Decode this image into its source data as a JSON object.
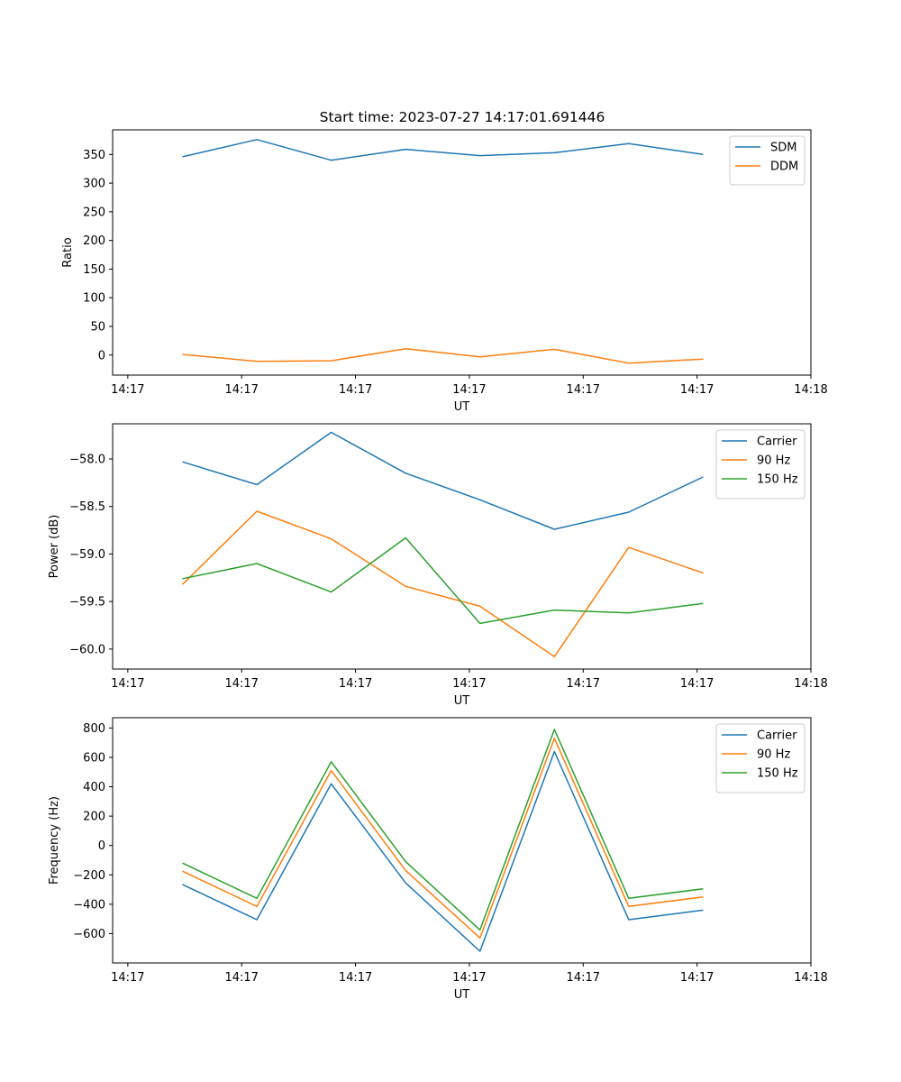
{
  "figure_title": "Start time: 2023-07-27 14:17:01.691446",
  "chart_data": [
    {
      "type": "line",
      "title": "Start time: 2023-07-27 14:17:01.691446",
      "xlabel": "UT",
      "ylabel": "Ratio",
      "xlim": [
        -0.1,
        4.5
      ],
      "ylim": [
        -35,
        393
      ],
      "x_ticks": [
        0,
        0.75,
        1.5,
        2.25,
        3,
        3.75,
        4.5
      ],
      "x_tick_labels": [
        "14:17",
        "14:17",
        "14:17",
        "14:17",
        "14:17",
        "14:17",
        "14:18"
      ],
      "y_ticks": [
        0,
        50,
        100,
        150,
        200,
        250,
        300,
        350
      ],
      "y_tick_labels": [
        "0",
        "50",
        "100",
        "150",
        "200",
        "250",
        "300",
        "350"
      ],
      "legend_position": "top-right",
      "x": [
        0.36,
        0.85,
        1.34,
        1.83,
        2.32,
        2.81,
        3.3,
        3.79
      ],
      "series": [
        {
          "name": "SDM",
          "color": "#1f77b4",
          "values": [
            346,
            376,
            340,
            359,
            348,
            353,
            369,
            350
          ]
        },
        {
          "name": "DDM",
          "color": "#ff7f0e",
          "values": [
            1,
            -11,
            -10,
            11,
            -3,
            10,
            -14,
            -7
          ]
        }
      ]
    },
    {
      "type": "line",
      "title": "",
      "xlabel": "UT",
      "ylabel": "Power (dB)",
      "xlim": [
        -0.1,
        4.5
      ],
      "ylim": [
        -60.21,
        -57.63
      ],
      "x_ticks": [
        0,
        0.75,
        1.5,
        2.25,
        3,
        3.75,
        4.5
      ],
      "x_tick_labels": [
        "14:17",
        "14:17",
        "14:17",
        "14:17",
        "14:17",
        "14:17",
        "14:18"
      ],
      "y_ticks": [
        -60.0,
        -59.5,
        -59.0,
        -58.5,
        -58.0
      ],
      "y_tick_labels": [
        "−60.0",
        "−59.5",
        "−59.0",
        "−58.5",
        "−58.0"
      ],
      "legend_position": "top-right",
      "x": [
        0.36,
        0.85,
        1.34,
        1.83,
        2.32,
        2.81,
        3.3,
        3.79
      ],
      "series": [
        {
          "name": "Carrier",
          "color": "#1f77b4",
          "values": [
            -58.03,
            -58.27,
            -57.72,
            -58.15,
            -58.43,
            -58.74,
            -58.56,
            -58.19
          ]
        },
        {
          "name": "90 Hz",
          "color": "#ff7f0e",
          "values": [
            -59.32,
            -58.55,
            -58.84,
            -59.34,
            -59.55,
            -60.08,
            -58.93,
            -59.2
          ]
        },
        {
          "name": "150 Hz",
          "color": "#2ca02c",
          "values": [
            -59.26,
            -59.1,
            -59.4,
            -58.83,
            -59.73,
            -59.59,
            -59.62,
            -59.52
          ]
        }
      ]
    },
    {
      "type": "line",
      "title": "",
      "xlabel": "UT",
      "ylabel": "Frequency (Hz)",
      "xlim": [
        -0.1,
        4.5
      ],
      "ylim": [
        -800,
        870
      ],
      "x_ticks": [
        0,
        0.75,
        1.5,
        2.25,
        3,
        3.75,
        4.5
      ],
      "x_tick_labels": [
        "14:17",
        "14:17",
        "14:17",
        "14:17",
        "14:17",
        "14:17",
        "14:18"
      ],
      "y_ticks": [
        -600,
        -400,
        -200,
        0,
        200,
        400,
        600,
        800
      ],
      "y_tick_labels": [
        "−600",
        "−400",
        "−200",
        "0",
        "200",
        "400",
        "600",
        "800"
      ],
      "legend_position": "top-right",
      "x": [
        0.36,
        0.85,
        1.34,
        1.83,
        2.32,
        2.81,
        3.3,
        3.79
      ],
      "series": [
        {
          "name": "Carrier",
          "color": "#1f77b4",
          "values": [
            -265,
            -505,
            420,
            -255,
            -720,
            640,
            -505,
            -440
          ]
        },
        {
          "name": "90 Hz",
          "color": "#ff7f0e",
          "values": [
            -175,
            -415,
            510,
            -170,
            -630,
            730,
            -415,
            -350
          ]
        },
        {
          "name": "150 Hz",
          "color": "#2ca02c",
          "values": [
            -120,
            -360,
            570,
            -110,
            -575,
            790,
            -360,
            -295
          ]
        }
      ]
    }
  ]
}
